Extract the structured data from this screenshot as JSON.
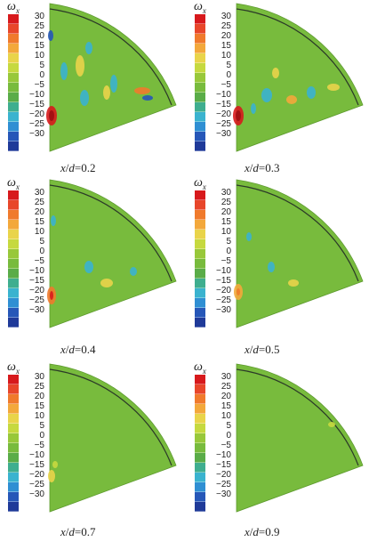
{
  "symbol": "ω",
  "subscript": "x",
  "colorbar": {
    "ticks": [
      "30",
      "25",
      "20",
      "15",
      "10",
      "5",
      "0",
      "−5",
      "−10",
      "−15",
      "−20",
      "−25",
      "−30"
    ],
    "colors": [
      "#d7191c",
      "#e8462a",
      "#f07a2c",
      "#f3a83b",
      "#e9d44a",
      "#c6d93f",
      "#98c83a",
      "#78bb3d",
      "#5aac48",
      "#3fae8f",
      "#3ab3cf",
      "#2f8fd3",
      "#2657b8",
      "#1f3a99"
    ]
  },
  "field_color": "#78bb3d",
  "panels": [
    {
      "id": "p1",
      "caption_var": "x",
      "caption_sep": "/",
      "caption_d": "d",
      "caption_val": "=0.2"
    },
    {
      "id": "p2",
      "caption_var": "x",
      "caption_sep": "/",
      "caption_d": "d",
      "caption_val": "=0.3"
    },
    {
      "id": "p3",
      "caption_var": "x",
      "caption_sep": "/",
      "caption_d": "d",
      "caption_val": "=0.4"
    },
    {
      "id": "p4",
      "caption_var": "x",
      "caption_sep": "/",
      "caption_d": "d",
      "caption_val": "=0.5"
    },
    {
      "id": "p5",
      "caption_var": "x",
      "caption_sep": "/",
      "caption_d": "d",
      "caption_val": "=0.7"
    },
    {
      "id": "p6",
      "caption_var": "x",
      "caption_sep": "/",
      "caption_d": "d",
      "caption_val": "=0.9"
    }
  ]
}
